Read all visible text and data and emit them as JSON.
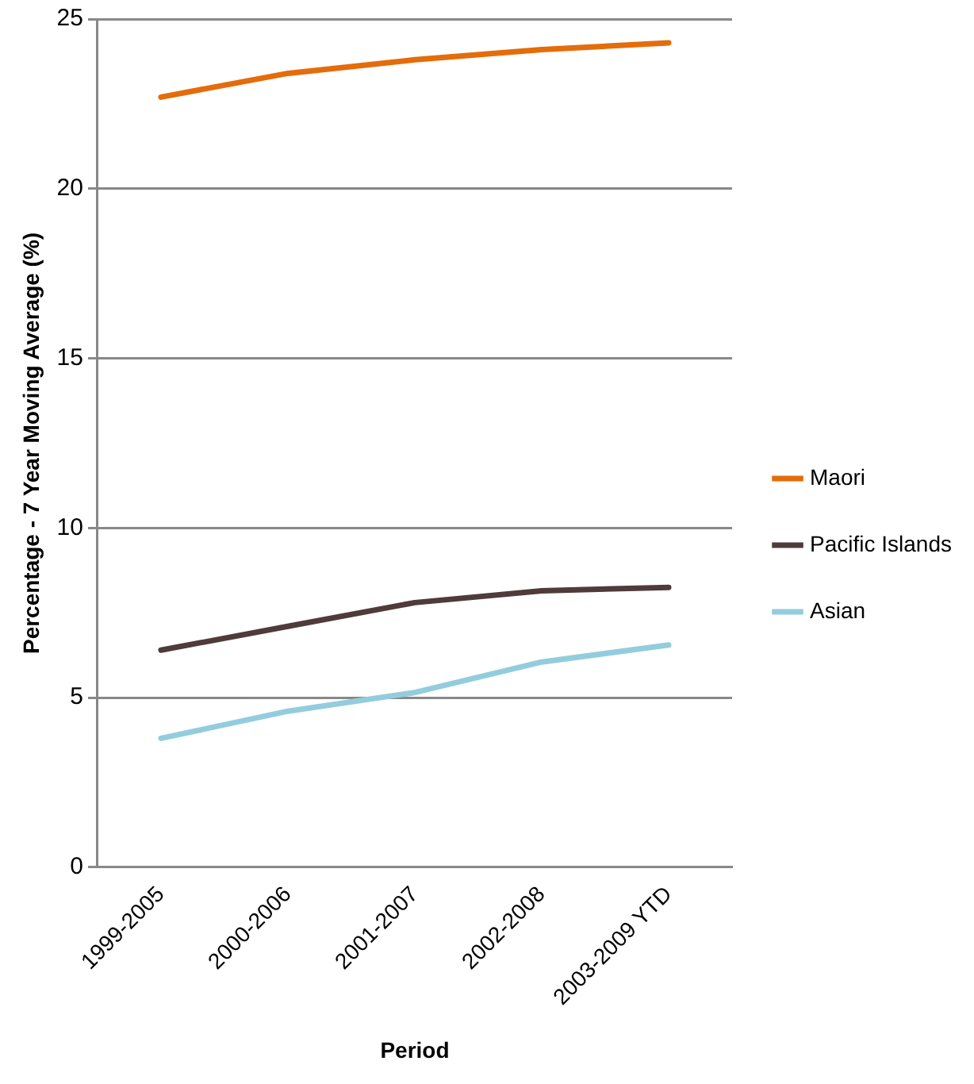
{
  "chart_data": {
    "type": "line",
    "categories": [
      "1999-2005",
      "2000-2006",
      "2001-2007",
      "2002-2008",
      "2003-2009 YTD"
    ],
    "series": [
      {
        "name": "Maori",
        "color": "#e46c0a",
        "values": [
          22.7,
          23.4,
          23.8,
          24.1,
          24.3
        ]
      },
      {
        "name": "Pacific Islands",
        "color": "#4f3b3b",
        "values": [
          6.4,
          7.1,
          7.8,
          8.15,
          8.25
        ]
      },
      {
        "name": "Asian",
        "color": "#93cddd",
        "values": [
          3.8,
          4.6,
          5.15,
          6.05,
          6.55
        ]
      }
    ],
    "xlabel": "Period",
    "ylabel": "Percentage - 7 Year Moving Average (%)",
    "ylim": [
      0,
      25
    ],
    "yticks": [
      0,
      5,
      10,
      15,
      20,
      25
    ],
    "grid": "y",
    "legend": "right",
    "marker": "none",
    "line_style": "solid"
  }
}
